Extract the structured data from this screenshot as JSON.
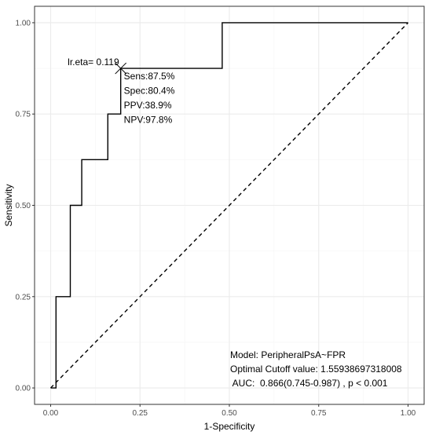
{
  "chart_data": {
    "type": "line",
    "xlabel": "1-Specificity",
    "ylabel": "Sensitivity",
    "xlim": [
      -0.045,
      1.045
    ],
    "ylim": [
      -0.045,
      1.045
    ],
    "x_ticks": [
      "0.00",
      "0.25",
      "0.50",
      "0.75",
      "1.00"
    ],
    "y_ticks": [
      "0.00",
      "0.25",
      "0.50",
      "0.75",
      "1.00"
    ],
    "grid": true,
    "series": [
      {
        "style": "step-solid",
        "points": [
          [
            0.0,
            0.0
          ],
          [
            0.015,
            0.0
          ],
          [
            0.015,
            0.25
          ],
          [
            0.055,
            0.25
          ],
          [
            0.055,
            0.5
          ],
          [
            0.087,
            0.5
          ],
          [
            0.087,
            0.625
          ],
          [
            0.16,
            0.625
          ],
          [
            0.16,
            0.75
          ],
          [
            0.196,
            0.75
          ],
          [
            0.196,
            0.875
          ],
          [
            0.48,
            0.875
          ],
          [
            0.48,
            1.0
          ],
          [
            1.0,
            1.0
          ]
        ]
      },
      {
        "style": "diagonal-dashed",
        "points": [
          [
            0.0,
            0.0
          ],
          [
            1.0,
            1.0
          ]
        ]
      }
    ],
    "cutoff_point": {
      "x": 0.196,
      "y": 0.875,
      "marker": "x-cross"
    },
    "annotations": {
      "cutoff_label": "lr.eta= 0.119",
      "metrics": [
        "Sens:87.5%",
        "Spec:80.4%",
        "PPV:38.9%",
        "NPV:97.8%"
      ],
      "model": "Model: PeripheralPsA~FPR",
      "cutoff_value": "Optimal Cutoff value:  1.55938697318008",
      "auc": " AUC:  0.866(0.745-0.987) , p < 0.001"
    },
    "colors": {
      "panel_background": "#ffffff",
      "panel_border": "#333333",
      "grid_major": "#ebebeb",
      "grid_minor": "#f5f5f5",
      "roc_line": "#000000",
      "reference_line": "#000000"
    }
  }
}
